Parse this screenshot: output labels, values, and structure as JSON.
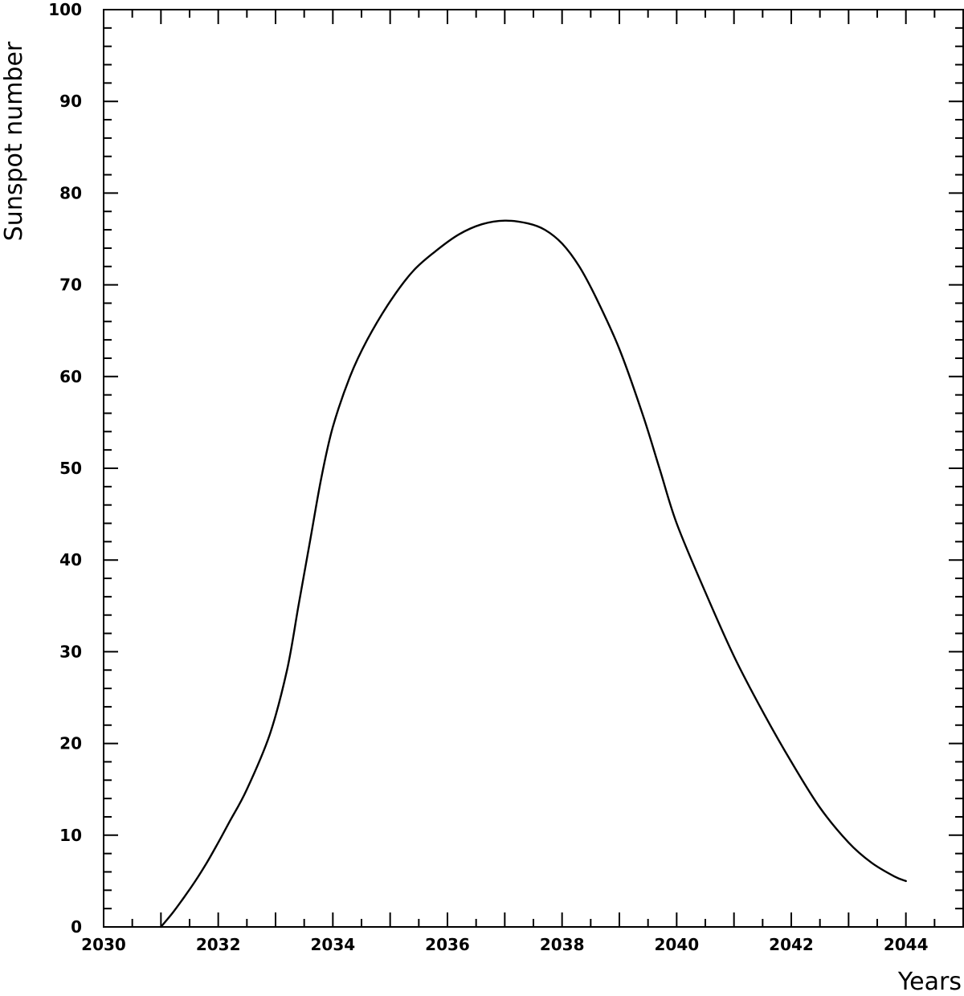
{
  "chart_data": {
    "type": "line",
    "title": "",
    "xlabel": "Years",
    "ylabel": "Sunspot number",
    "xlim": [
      2030,
      2045
    ],
    "ylim": [
      0,
      100
    ],
    "xticks": [
      2030,
      2032,
      2034,
      2036,
      2038,
      2040,
      2042,
      2044
    ],
    "xtick_labels": [
      "2030",
      "2032",
      "2034",
      "2036",
      "2038",
      "2040",
      "2042",
      "2044"
    ],
    "yticks": [
      0,
      10,
      20,
      30,
      40,
      50,
      60,
      70,
      80,
      90,
      100
    ],
    "ytick_labels": [
      "0",
      "10",
      "20",
      "30",
      "40",
      "50",
      "60",
      "70",
      "80",
      "90",
      "100"
    ],
    "grid": false,
    "line_color": "#000000",
    "series": [
      {
        "x": [
          2031.0,
          2031.2,
          2031.4,
          2031.6,
          2031.8,
          2032.0,
          2032.2,
          2032.5,
          2032.9,
          2033.2,
          2033.4,
          2033.6,
          2033.8,
          2034.0,
          2034.3,
          2034.6,
          2035.0,
          2035.4,
          2035.8,
          2036.2,
          2036.6,
          2037.0,
          2037.4,
          2037.7,
          2038.0,
          2038.3,
          2038.6,
          2039.0,
          2039.4,
          2039.7,
          2040.0,
          2040.5,
          2041.0,
          2041.5,
          2042.0,
          2042.5,
          2043.0,
          2043.4,
          2043.8,
          2044.0
        ],
        "y": [
          0.0,
          1.5,
          3.2,
          5.0,
          7.0,
          9.2,
          11.5,
          15.0,
          21.0,
          28.0,
          35.0,
          42.0,
          49.0,
          54.5,
          60.0,
          64.0,
          68.2,
          71.5,
          73.7,
          75.5,
          76.6,
          77.0,
          76.7,
          76.0,
          74.5,
          72.0,
          68.5,
          63.0,
          56.0,
          50.0,
          44.0,
          36.5,
          29.5,
          23.5,
          18.0,
          13.0,
          9.2,
          7.0,
          5.5,
          5.0
        ]
      }
    ]
  }
}
